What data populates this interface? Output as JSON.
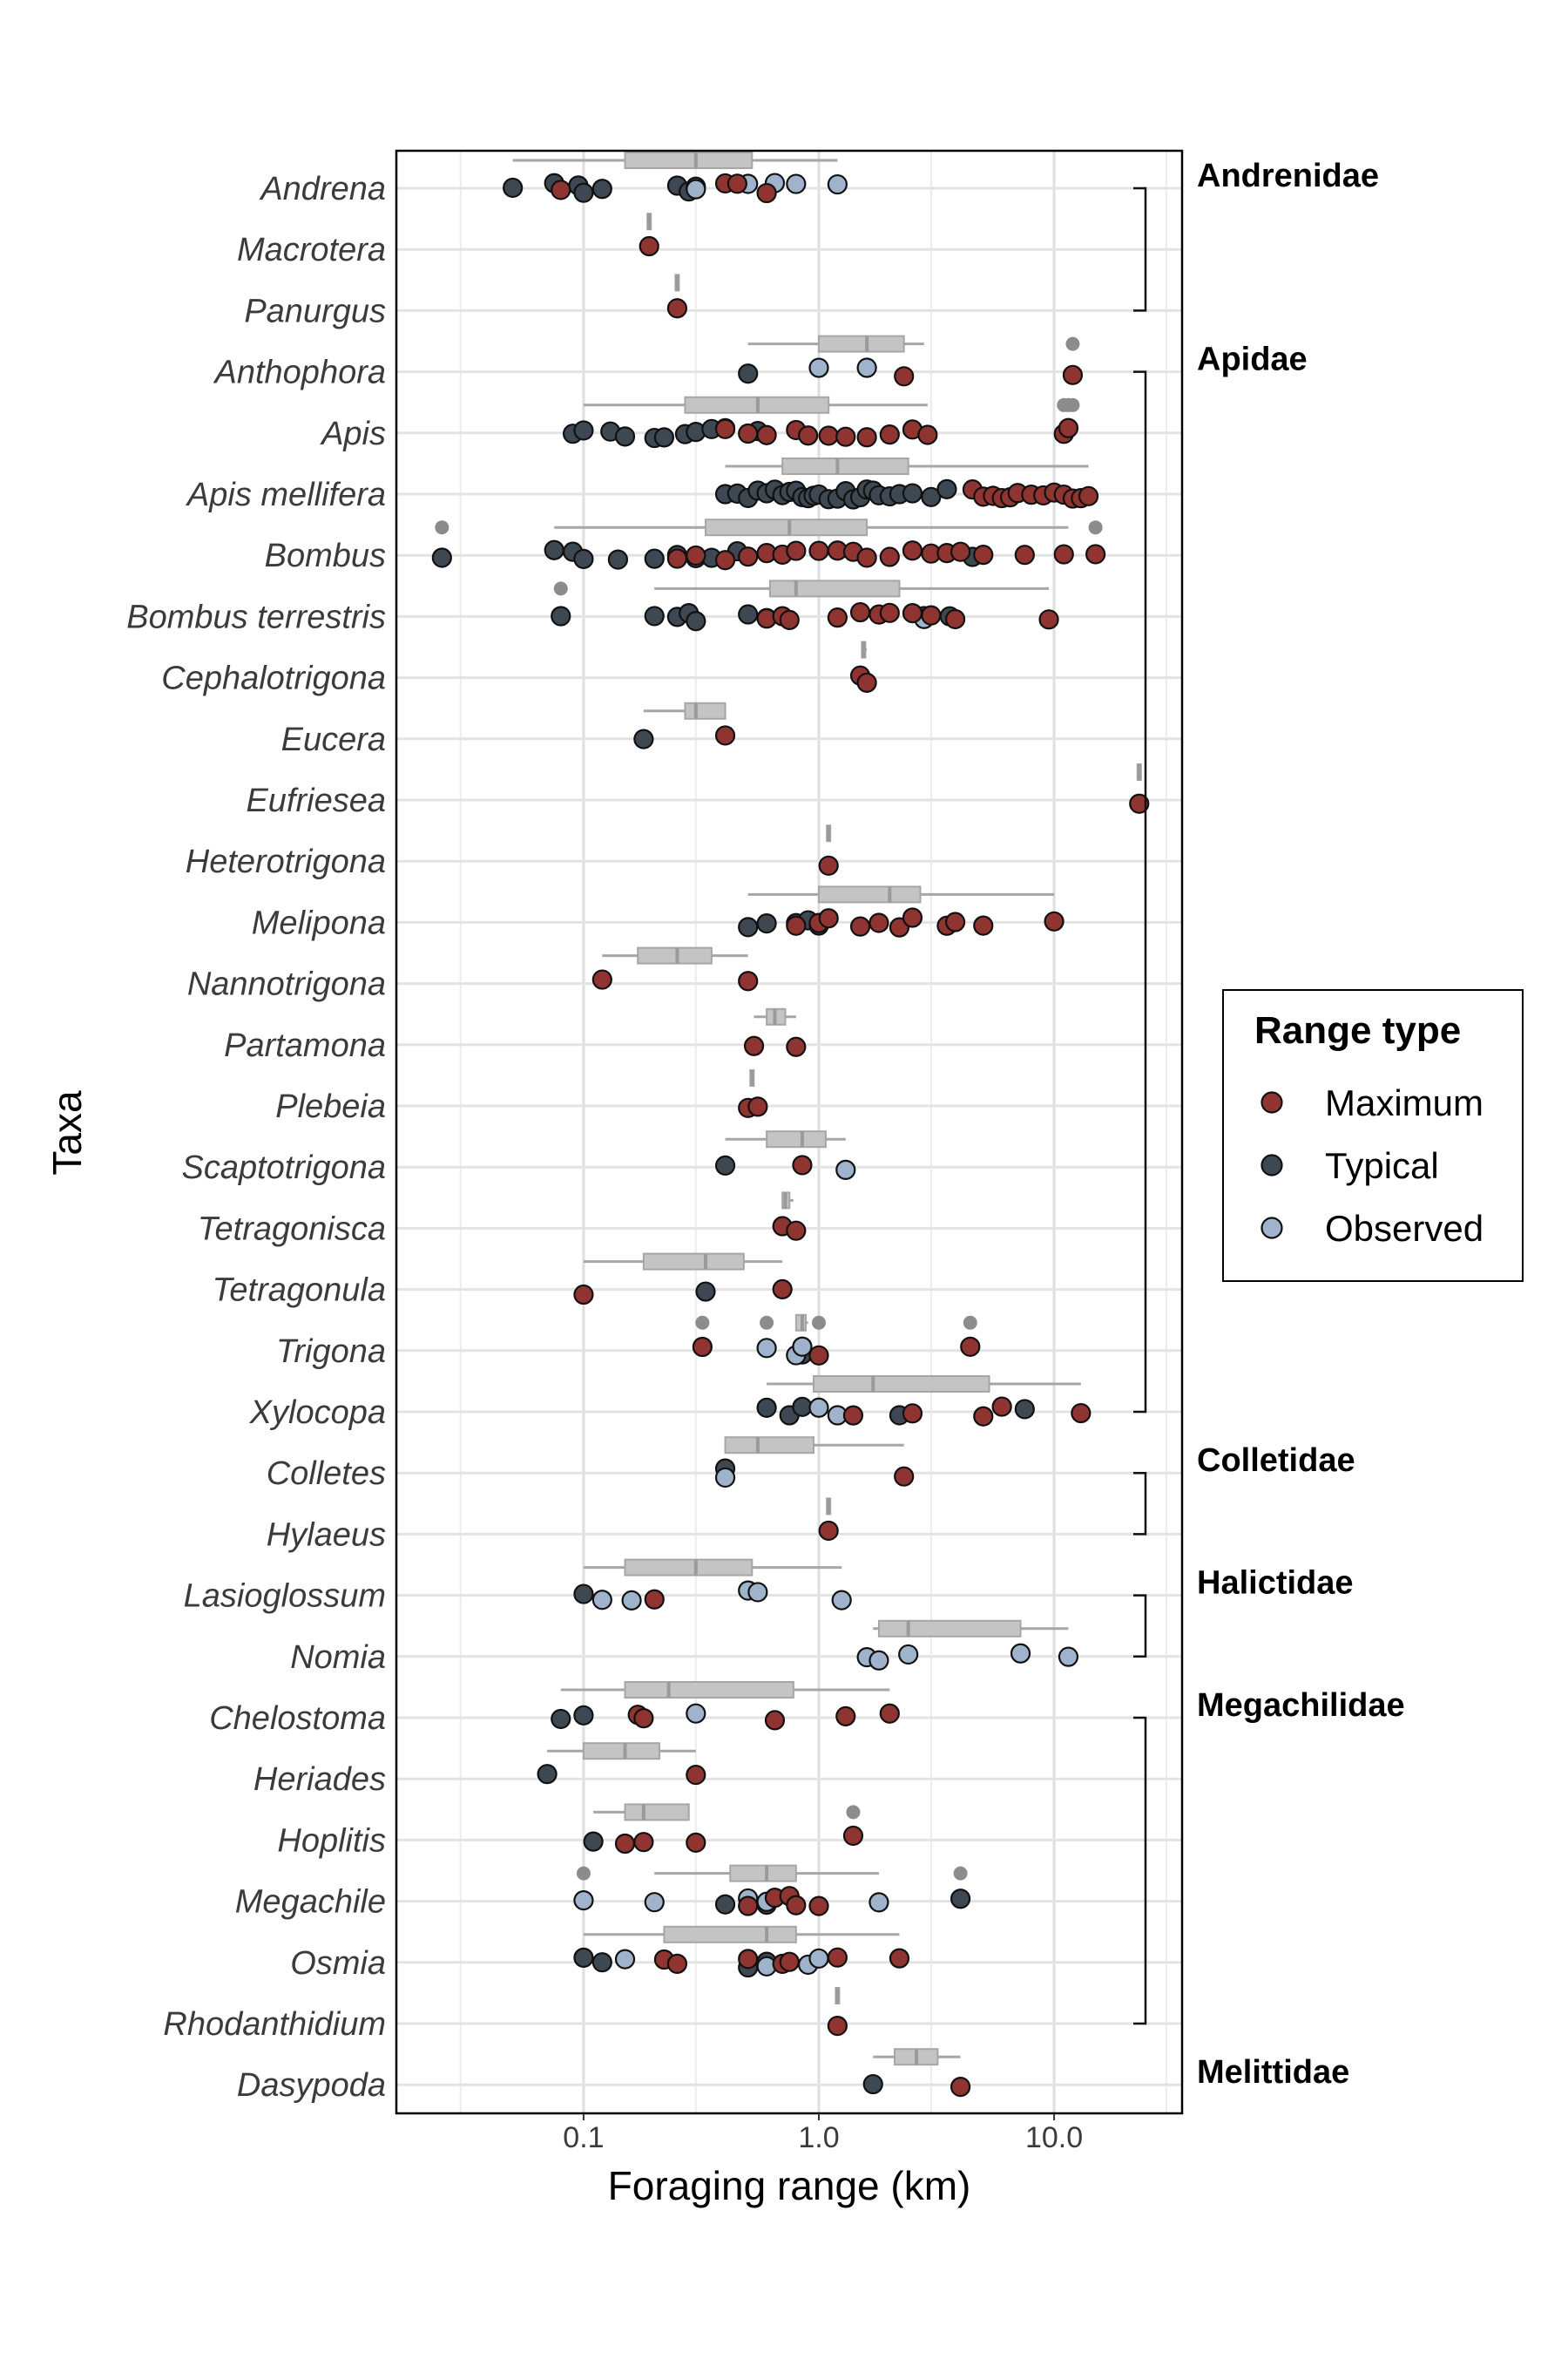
{
  "chart_data": {
    "type": "scatter",
    "xlabel": "Foraging range (km)",
    "ylabel": "Taxa",
    "x_scale": "log",
    "xlim": [
      0.016,
      35
    ],
    "x_ticks": [
      0.1,
      1,
      10
    ],
    "x_tick_labels": [
      "0.1",
      "1.0",
      "10.0"
    ],
    "grid": true,
    "legend": {
      "title": "Range type",
      "placement": "right",
      "entries": [
        "Maximum",
        "Typical",
        "Observed"
      ]
    },
    "colors": {
      "Maximum": "#8f3430",
      "Typical": "#3d4852",
      "Observed": "#9fb3cc",
      "boxplot": "#c4c4c4",
      "outlier": "#8c8c8c"
    },
    "families": [
      {
        "name": "Andrenidae",
        "from": "Andrena",
        "to": "Panurgus"
      },
      {
        "name": "Apidae",
        "from": "Anthophora",
        "to": "Xylocopa"
      },
      {
        "name": "Colletidae",
        "from": "Colletes",
        "to": "Hylaeus"
      },
      {
        "name": "Halictidae",
        "from": "Lasioglossum",
        "to": "Nomia"
      },
      {
        "name": "Megachilidae",
        "from": "Chelostoma",
        "to": "Rhodanthidium"
      },
      {
        "name": "Melittidae",
        "from": "Dasypoda",
        "to": "Dasypoda"
      }
    ],
    "taxa": [
      {
        "name": "Andrena",
        "box": [
          0.05,
          0.15,
          0.3,
          0.52,
          1.2
        ],
        "points": {
          "Maximum": [
            0.08,
            0.4,
            0.45,
            0.6
          ],
          "Typical": [
            0.05,
            0.075,
            0.095,
            0.1,
            0.12,
            0.25,
            0.28,
            0.3
          ],
          "Observed": [
            0.3,
            0.5,
            0.65,
            0.8,
            1.2
          ]
        }
      },
      {
        "name": "Macrotera",
        "box": [
          0.19,
          0.19,
          0.19,
          0.19,
          0.19
        ],
        "points": {
          "Maximum": [
            0.19
          ],
          "Typical": [],
          "Observed": []
        }
      },
      {
        "name": "Panurgus",
        "box": [
          0.25,
          0.25,
          0.25,
          0.25,
          0.25
        ],
        "points": {
          "Maximum": [
            0.25
          ],
          "Typical": [],
          "Observed": []
        }
      },
      {
        "name": "Anthophora",
        "box": [
          0.5,
          1.0,
          1.6,
          2.3,
          2.8
        ],
        "outliers": [
          12
        ],
        "points": {
          "Maximum": [
            2.3,
            12
          ],
          "Typical": [
            0.5
          ],
          "Observed": [
            1.0,
            1.6
          ]
        }
      },
      {
        "name": "Apis",
        "box": [
          0.1,
          0.27,
          0.55,
          1.1,
          2.9
        ],
        "outliers": [
          11,
          11.5,
          12
        ],
        "points": {
          "Maximum": [
            0.4,
            0.5,
            0.6,
            0.8,
            0.9,
            1.1,
            1.3,
            1.6,
            2.0,
            2.5,
            2.9,
            11,
            11.5
          ],
          "Typical": [
            0.09,
            0.1,
            0.13,
            0.15,
            0.2,
            0.22,
            0.27,
            0.3,
            0.35,
            0.4,
            0.55
          ],
          "Observed": []
        }
      },
      {
        "name": "Apis mellifera",
        "box": [
          0.4,
          0.7,
          1.2,
          2.4,
          14
        ],
        "outliers": [],
        "points": {
          "Maximum": [
            4.5,
            5,
            5.5,
            6,
            6.5,
            7,
            8,
            9,
            10,
            11,
            12,
            13,
            14
          ],
          "Typical": [
            0.4,
            0.45,
            0.5,
            0.55,
            0.6,
            0.65,
            0.7,
            0.75,
            0.8,
            0.85,
            0.9,
            0.95,
            1.0,
            1.1,
            1.2,
            1.3,
            1.4,
            1.5,
            1.6,
            1.7,
            1.8,
            2.0,
            2.2,
            2.5,
            3.0,
            3.5
          ],
          "Observed": []
        }
      },
      {
        "name": "Bombus",
        "box": [
          0.075,
          0.33,
          0.75,
          1.6,
          11.5
        ],
        "outliers": [
          0.025,
          15
        ],
        "points": {
          "Maximum": [
            0.25,
            0.3,
            0.4,
            0.5,
            0.6,
            0.7,
            0.8,
            1.0,
            1.2,
            1.4,
            1.6,
            2.0,
            2.5,
            3.0,
            3.5,
            4.0,
            5.0,
            7.5,
            11,
            15
          ],
          "Typical": [
            0.025,
            0.075,
            0.09,
            0.1,
            0.14,
            0.2,
            0.25,
            0.3,
            0.35,
            0.45,
            4.5
          ],
          "Observed": []
        }
      },
      {
        "name": "Bombus terrestris",
        "box": [
          0.2,
          0.62,
          0.8,
          2.2,
          9.5
        ],
        "outliers": [
          0.08
        ],
        "points": {
          "Maximum": [
            0.6,
            0.7,
            0.75,
            1.2,
            1.5,
            1.8,
            2.0,
            2.5,
            3.0,
            3.8,
            9.5
          ],
          "Typical": [
            0.08,
            0.2,
            0.25,
            0.28,
            0.3,
            0.5,
            0.6,
            2.8,
            3.6
          ],
          "Observed": [
            2.8
          ]
        }
      },
      {
        "name": "Cephalotrigona",
        "box": [
          1.55,
          1.55,
          1.55,
          1.6,
          1.6
        ],
        "points": {
          "Maximum": [
            1.5,
            1.6
          ],
          "Typical": [],
          "Observed": []
        }
      },
      {
        "name": "Eucera",
        "box": [
          0.18,
          0.27,
          0.3,
          0.4,
          0.4
        ],
        "points": {
          "Maximum": [
            0.4
          ],
          "Typical": [
            0.18
          ],
          "Observed": []
        }
      },
      {
        "name": "Eufriesea",
        "box": [
          23,
          23,
          23,
          23,
          23
        ],
        "points": {
          "Maximum": [
            23
          ],
          "Typical": [],
          "Observed": []
        }
      },
      {
        "name": "Heterotrigona",
        "box": [
          1.1,
          1.1,
          1.1,
          1.1,
          1.1
        ],
        "points": {
          "Maximum": [
            1.1
          ],
          "Typical": [],
          "Observed": []
        }
      },
      {
        "name": "Melipona",
        "box": [
          0.5,
          1.0,
          2.0,
          2.7,
          10
        ],
        "points": {
          "Maximum": [
            0.8,
            1.0,
            1.1,
            1.5,
            1.8,
            2.2,
            2.5,
            3.5,
            3.8,
            5.0,
            10
          ],
          "Typical": [
            0.5,
            0.6,
            0.8,
            0.9,
            1.0
          ],
          "Observed": []
        }
      },
      {
        "name": "Nannotrigona",
        "box": [
          0.12,
          0.17,
          0.25,
          0.35,
          0.5
        ],
        "points": {
          "Maximum": [
            0.12,
            0.5
          ],
          "Typical": [],
          "Observed": []
        }
      },
      {
        "name": "Partamona",
        "box": [
          0.53,
          0.6,
          0.65,
          0.72,
          0.8
        ],
        "points": {
          "Maximum": [
            0.53,
            0.8
          ],
          "Typical": [],
          "Observed": []
        }
      },
      {
        "name": "Plebeia",
        "box": [
          0.52,
          0.52,
          0.52,
          0.53,
          0.53
        ],
        "points": {
          "Maximum": [
            0.5,
            0.55
          ],
          "Typical": [],
          "Observed": []
        }
      },
      {
        "name": "Scaptotrigona",
        "box": [
          0.4,
          0.6,
          0.85,
          1.07,
          1.3
        ],
        "points": {
          "Maximum": [
            0.85
          ],
          "Typical": [
            0.4
          ],
          "Observed": [
            1.3
          ]
        }
      },
      {
        "name": "Tetragonisca",
        "box": [
          0.7,
          0.7,
          0.72,
          0.75,
          0.78
        ],
        "points": {
          "Maximum": [
            0.7,
            0.8
          ],
          "Typical": [],
          "Observed": []
        }
      },
      {
        "name": "Tetragonula",
        "box": [
          0.1,
          0.18,
          0.33,
          0.48,
          0.7
        ],
        "points": {
          "Maximum": [
            0.1,
            0.7
          ],
          "Typical": [
            0.33
          ],
          "Observed": []
        }
      },
      {
        "name": "Trigona",
        "box": [
          0.8,
          0.8,
          0.85,
          0.88,
          0.9
        ],
        "outliers": [
          0.32,
          0.6,
          1.0,
          4.4
        ],
        "points": {
          "Maximum": [
            0.32,
            1.0,
            4.4
          ],
          "Typical": [
            0.85
          ],
          "Observed": [
            0.6,
            0.8,
            0.85
          ]
        }
      },
      {
        "name": "Xylocopa",
        "box": [
          0.6,
          0.95,
          1.7,
          5.3,
          13
        ],
        "points": {
          "Maximum": [
            1.4,
            2.5,
            5.0,
            6.0,
            13
          ],
          "Typical": [
            0.6,
            0.75,
            0.85,
            2.2,
            7.5
          ],
          "Observed": [
            1.0,
            1.2
          ]
        }
      },
      {
        "name": "Colletes",
        "box": [
          0.4,
          0.4,
          0.55,
          0.95,
          2.3
        ],
        "points": {
          "Maximum": [
            2.3
          ],
          "Typical": [
            0.4
          ],
          "Observed": [
            0.4
          ]
        }
      },
      {
        "name": "Hylaeus",
        "box": [
          1.1,
          1.1,
          1.1,
          1.1,
          1.1
        ],
        "points": {
          "Maximum": [
            1.1
          ],
          "Typical": [],
          "Observed": []
        }
      },
      {
        "name": "Lasioglossum",
        "box": [
          0.1,
          0.15,
          0.3,
          0.52,
          1.25
        ],
        "points": {
          "Maximum": [
            0.2
          ],
          "Typical": [
            0.1
          ],
          "Observed": [
            0.12,
            0.16,
            0.5,
            0.55,
            1.25
          ]
        }
      },
      {
        "name": "Nomia",
        "box": [
          1.7,
          1.8,
          2.4,
          7.2,
          11.5
        ],
        "points": {
          "Maximum": [],
          "Typical": [],
          "Observed": [
            1.6,
            1.8,
            2.4,
            7.2,
            11.5
          ]
        }
      },
      {
        "name": "Chelostoma",
        "box": [
          0.08,
          0.15,
          0.23,
          0.78,
          2.0
        ],
        "points": {
          "Maximum": [
            0.17,
            0.18,
            0.65,
            1.3,
            2.0
          ],
          "Typical": [
            0.08,
            0.1
          ],
          "Observed": [
            0.3
          ]
        }
      },
      {
        "name": "Heriades",
        "box": [
          0.07,
          0.1,
          0.15,
          0.21,
          0.3
        ],
        "points": {
          "Maximum": [
            0.3
          ],
          "Typical": [
            0.07
          ],
          "Observed": []
        }
      },
      {
        "name": "Hoplitis",
        "box": [
          0.11,
          0.15,
          0.18,
          0.28,
          0.28
        ],
        "outliers": [
          1.4
        ],
        "points": {
          "Maximum": [
            0.15,
            0.18,
            0.3,
            1.4
          ],
          "Typical": [
            0.11
          ],
          "Observed": []
        }
      },
      {
        "name": "Megachile",
        "box": [
          0.2,
          0.42,
          0.6,
          0.8,
          1.8
        ],
        "outliers": [
          0.1,
          4.0
        ],
        "points": {
          "Maximum": [
            0.5,
            0.65,
            0.75,
            0.8,
            1.0
          ],
          "Typical": [
            0.4,
            0.6,
            4.0
          ],
          "Observed": [
            0.1,
            0.2,
            0.5,
            0.6,
            1.8
          ]
        }
      },
      {
        "name": "Osmia",
        "box": [
          0.1,
          0.22,
          0.6,
          0.8,
          2.2
        ],
        "points": {
          "Maximum": [
            0.22,
            0.25,
            0.5,
            0.7,
            0.75,
            1.2,
            2.2
          ],
          "Typical": [
            0.1,
            0.12,
            0.5,
            0.6
          ],
          "Observed": [
            0.15,
            0.6,
            0.9,
            1.0
          ]
        }
      },
      {
        "name": "Rhodanthidium",
        "box": [
          1.2,
          1.2,
          1.2,
          1.2,
          1.2
        ],
        "points": {
          "Maximum": [
            1.2
          ],
          "Typical": [],
          "Observed": []
        }
      },
      {
        "name": "Dasypoda",
        "box": [
          1.7,
          2.1,
          2.6,
          3.2,
          4.0
        ],
        "points": {
          "Maximum": [
            4.0
          ],
          "Typical": [
            1.7
          ],
          "Observed": []
        }
      }
    ]
  }
}
